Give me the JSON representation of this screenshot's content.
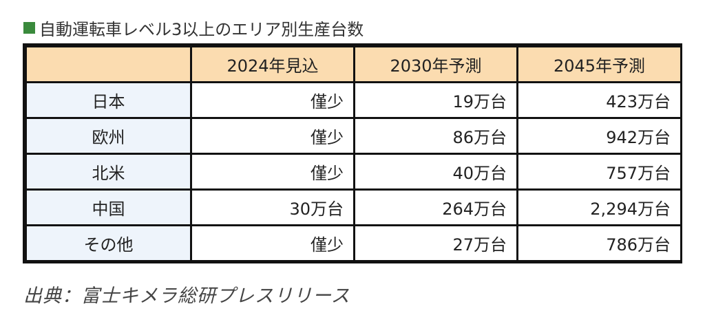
{
  "title": "自動運転車レベル3以上のエリア別生産台数",
  "colors": {
    "title_marker": "#3a8a3c",
    "header_bg": "#fbdcb0",
    "row_header_bg": "#eef4fb"
  },
  "table": {
    "headers": [
      "",
      "2024年見込",
      "2030年予測",
      "2045年予測"
    ],
    "rows": [
      {
        "region": "日本",
        "values": [
          "僅少",
          "19万台",
          "423万台"
        ]
      },
      {
        "region": "欧州",
        "values": [
          "僅少",
          "86万台",
          "942万台"
        ]
      },
      {
        "region": "北米",
        "values": [
          "僅少",
          "40万台",
          "757万台"
        ]
      },
      {
        "region": "中国",
        "values": [
          "30万台",
          "264万台",
          "2,294万台"
        ]
      },
      {
        "region": "その他",
        "values": [
          "僅少",
          "27万台",
          "786万台"
        ]
      }
    ]
  },
  "source": "出典：富士キメラ総研プレスリリース"
}
